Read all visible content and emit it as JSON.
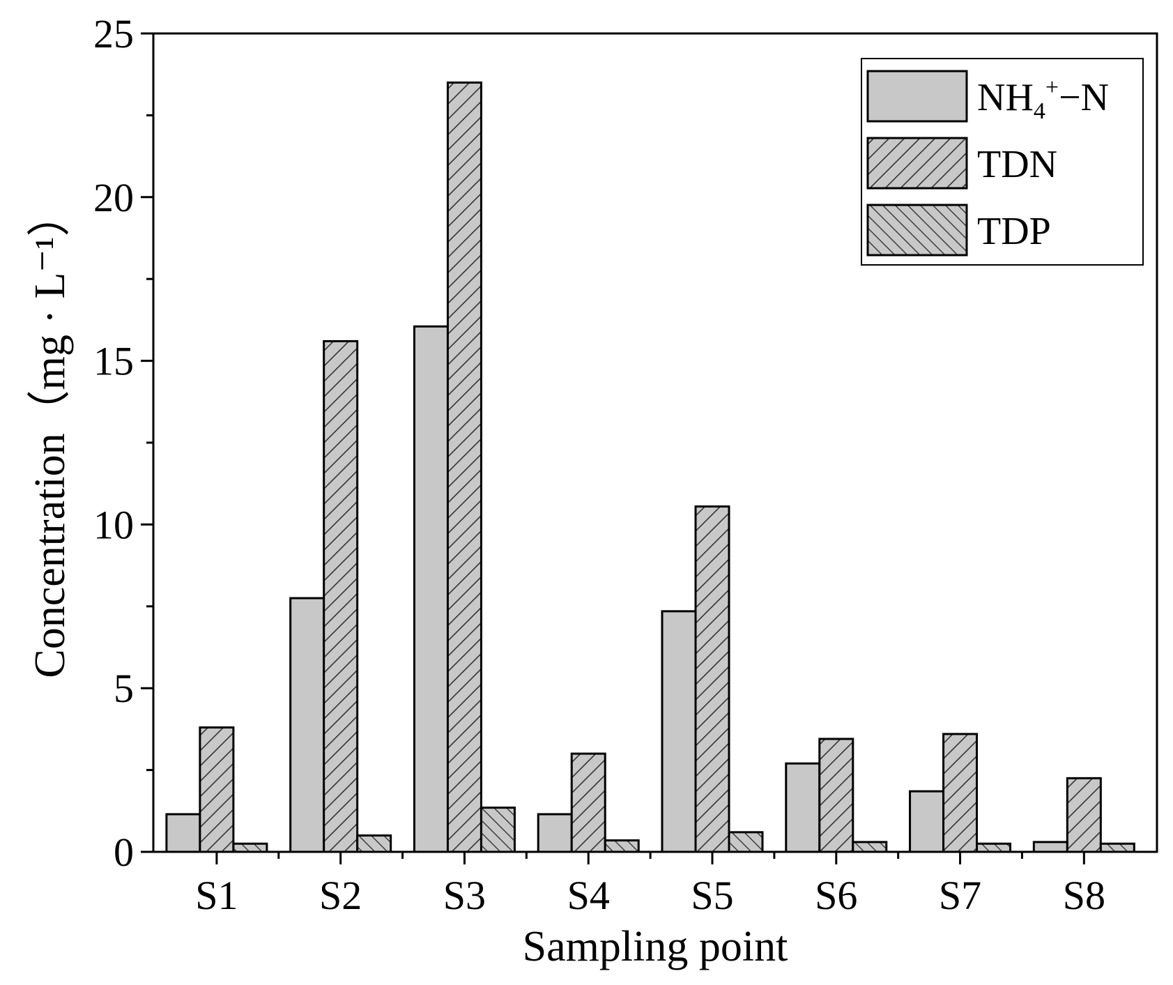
{
  "chart_data": {
    "type": "bar",
    "title": "",
    "xlabel": "Sampling point",
    "ylabel": "Concentration（mg · L⁻¹）",
    "ylim": [
      0,
      25
    ],
    "yticks": [
      "0",
      "5",
      "10",
      "15",
      "20",
      "25"
    ],
    "categories": [
      "S1",
      "S2",
      "S3",
      "S4",
      "S5",
      "S6",
      "S7",
      "S8"
    ],
    "series": [
      {
        "name": "NH4+-N",
        "label_parts": {
          "base": "NH",
          "sub": "4",
          "sup": "+",
          "rest": "−N"
        },
        "pattern": "solid",
        "values": [
          1.15,
          7.75,
          16.05,
          1.15,
          7.35,
          2.7,
          1.85,
          0.3
        ]
      },
      {
        "name": "TDN",
        "label_parts": {
          "base": "TDN",
          "sub": "",
          "sup": "",
          "rest": ""
        },
        "pattern": "forward-hatch",
        "values": [
          3.8,
          15.6,
          23.5,
          3.0,
          10.55,
          3.45,
          3.6,
          2.25
        ]
      },
      {
        "name": "TDP",
        "label_parts": {
          "base": "TDP",
          "sub": "",
          "sup": "",
          "rest": ""
        },
        "pattern": "back-hatch",
        "values": [
          0.25,
          0.5,
          1.35,
          0.35,
          0.6,
          0.3,
          0.25,
          0.25
        ]
      }
    ],
    "legend": "top-right",
    "grid": false
  },
  "colors": {
    "bar_fill": "#c8c8c8",
    "edge": "#000000",
    "background": "#ffffff"
  }
}
